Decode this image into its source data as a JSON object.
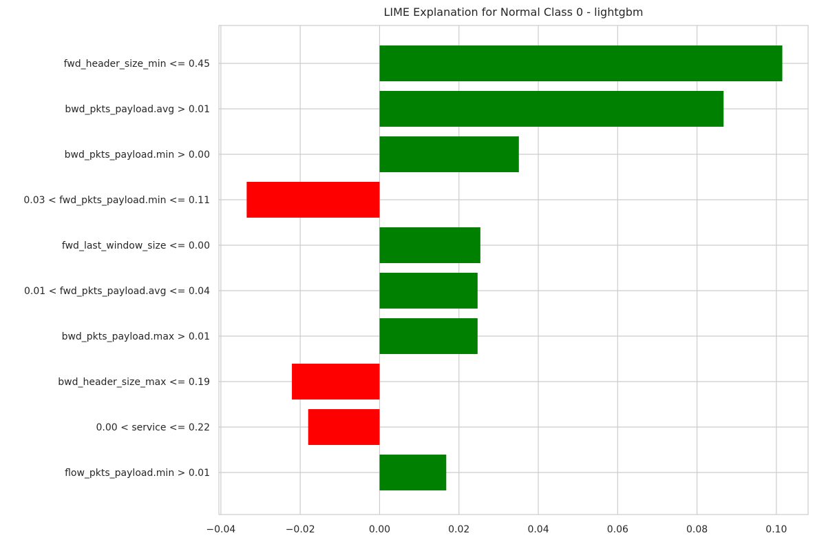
{
  "chart_data": {
    "type": "bar",
    "orientation": "horizontal",
    "title": "LIME Explanation for Normal Class 0 - lightgbm",
    "xlabel": "",
    "ylabel": "",
    "xlim": [
      -0.0405,
      0.108
    ],
    "xticks": [
      -0.04,
      -0.02,
      0.0,
      0.02,
      0.04,
      0.06,
      0.08,
      0.1
    ],
    "xtick_labels": [
      "−0.04",
      "−0.02",
      "0.00",
      "0.02",
      "0.04",
      "0.06",
      "0.08",
      "0.10"
    ],
    "grid": true,
    "categories": [
      "fwd_header_size_min <= 0.45",
      "bwd_pkts_payload.avg > 0.01",
      "bwd_pkts_payload.min > 0.00",
      "0.03 < fwd_pkts_payload.min <= 0.11",
      "fwd_last_window_size <= 0.00",
      "0.01 < fwd_pkts_payload.avg <= 0.04",
      "bwd_pkts_payload.max > 0.01",
      "bwd_header_size_max <= 0.19",
      "0.00 < service <= 0.22",
      "flow_pkts_payload.min > 0.01"
    ],
    "values": [
      0.1015,
      0.0867,
      0.0351,
      -0.0335,
      0.0254,
      0.0247,
      0.0247,
      -0.0221,
      -0.018,
      0.0168
    ],
    "colors": {
      "positive": "#008000",
      "negative": "#ff0000",
      "grid": "#cccccc",
      "text": "#262626"
    }
  }
}
